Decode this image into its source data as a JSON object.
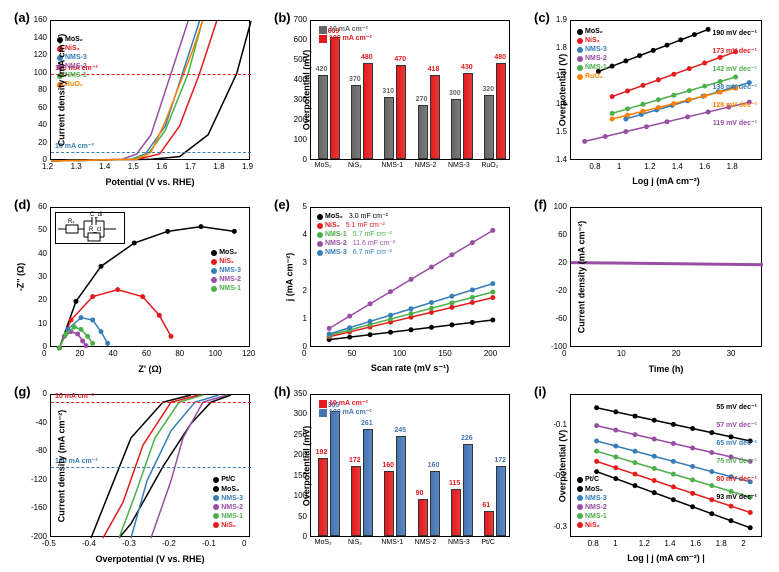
{
  "colors": {
    "MoS2": "#000000",
    "NiS2": "#e41a1c",
    "NMS1": "#4daf4a",
    "NMS2": "#984ea3",
    "NMS3": "#377eb8",
    "RuO2": "#ff7f00",
    "PtC": "#000000",
    "bar10": "#666666",
    "bar100": "#e41a1c",
    "bar10h": "#e41a1c",
    "bar100h": "#4575b4"
  },
  "panels": {
    "a": {
      "label": "(a)",
      "xlabel": "Potential (V vs. RHE)",
      "ylabel": "Current density (mA cm⁻²)",
      "xlim": [
        1.2,
        1.9
      ],
      "ylim": [
        0,
        160
      ],
      "xticks": [
        1.2,
        1.3,
        1.4,
        1.5,
        1.6,
        1.7,
        1.8,
        1.9
      ],
      "yticks": [
        0,
        20,
        40,
        60,
        80,
        100,
        120,
        140,
        160
      ],
      "ref10": "10 mA cm⁻²",
      "ref100": "100 mA cm⁻²",
      "legend": [
        "MoS₂",
        "NiS₂",
        "NMS-3",
        "NMS-2",
        "NMS-1",
        "RuO₂"
      ],
      "series": {
        "MoS2": [
          [
            1.2,
            0
          ],
          [
            1.55,
            2
          ],
          [
            1.65,
            5
          ],
          [
            1.75,
            30
          ],
          [
            1.85,
            100
          ],
          [
            1.9,
            160
          ]
        ],
        "NiS2": [
          [
            1.2,
            0
          ],
          [
            1.5,
            2
          ],
          [
            1.58,
            8
          ],
          [
            1.65,
            40
          ],
          [
            1.72,
            100
          ],
          [
            1.78,
            160
          ]
        ],
        "NMS3": [
          [
            1.2,
            0
          ],
          [
            1.48,
            2
          ],
          [
            1.53,
            8
          ],
          [
            1.6,
            40
          ],
          [
            1.66,
            100
          ],
          [
            1.72,
            160
          ]
        ],
        "NMS2": [
          [
            1.2,
            0
          ],
          [
            1.45,
            2
          ],
          [
            1.5,
            8
          ],
          [
            1.55,
            30
          ],
          [
            1.62,
            100
          ],
          [
            1.68,
            160
          ]
        ],
        "NMS1": [
          [
            1.2,
            0
          ],
          [
            1.48,
            2
          ],
          [
            1.54,
            8
          ],
          [
            1.6,
            35
          ],
          [
            1.68,
            100
          ],
          [
            1.73,
            160
          ]
        ],
        "RuO2": [
          [
            1.2,
            0
          ],
          [
            1.5,
            2
          ],
          [
            1.55,
            10
          ],
          [
            1.6,
            45
          ],
          [
            1.7,
            130
          ],
          [
            1.73,
            160
          ]
        ]
      }
    },
    "b": {
      "label": "(b)",
      "xlabel": "",
      "ylabel": "Overpotential (mV)",
      "ylim": [
        0,
        700
      ],
      "yticks": [
        0,
        100,
        200,
        300,
        400,
        500,
        600,
        700
      ],
      "legend": [
        "10 mA cm⁻²",
        "100 mA cm⁻²"
      ],
      "cats": [
        "MoS₂",
        "NiS₂",
        "NMS-1",
        "NMS-2",
        "NMS-3",
        "RuO₂"
      ],
      "v10": [
        420,
        370,
        310,
        270,
        300,
        320
      ],
      "v100": [
        609,
        480,
        470,
        418,
        430,
        480
      ],
      "lbl10": [
        "420",
        "370",
        "310",
        "270",
        "300",
        "320"
      ],
      "lbl100": [
        "609",
        "480",
        "470",
        "418",
        "430",
        "480"
      ]
    },
    "c": {
      "label": "(c)",
      "xlabel": "Log j (mA cm⁻²)",
      "ylabel": "Overpotential (V)",
      "xlim": [
        0.6,
        2.0
      ],
      "ylim": [
        1.4,
        1.9
      ],
      "xticks": [
        0.8,
        1.0,
        1.2,
        1.4,
        1.6,
        1.8
      ],
      "yticks": [
        1.4,
        1.5,
        1.6,
        1.7,
        1.8,
        1.9
      ],
      "legend": [
        "MoS₂",
        "NiS₂",
        "NMS-3",
        "NMS-2",
        "NMS-1",
        "RuO₂"
      ],
      "tafel": {
        "MoS2": "190 mV dec⁻¹",
        "NiS2": "173 mV dec⁻¹",
        "NMS1": "142 mV dec⁻¹",
        "NMS3": "138 mV dec⁻¹",
        "RuO2": "128 mV dec⁻¹",
        "NMS2": "119 mV dec⁻¹"
      },
      "series": {
        "MoS2": [
          [
            0.8,
            1.72
          ],
          [
            1.6,
            1.87
          ]
        ],
        "NiS2": [
          [
            0.9,
            1.63
          ],
          [
            1.8,
            1.79
          ]
        ],
        "NMS3": [
          [
            1.0,
            1.55
          ],
          [
            1.9,
            1.68
          ]
        ],
        "NMS2": [
          [
            0.7,
            1.47
          ],
          [
            1.9,
            1.61
          ]
        ],
        "NMS1": [
          [
            0.9,
            1.57
          ],
          [
            1.8,
            1.7
          ]
        ],
        "RuO2": [
          [
            0.9,
            1.55
          ],
          [
            1.8,
            1.66
          ]
        ]
      }
    },
    "d": {
      "label": "(d)",
      "xlabel": "Z' (Ω)",
      "ylabel": "-Z'' (Ω)",
      "xlim": [
        0,
        120
      ],
      "ylim": [
        0,
        60
      ],
      "xticks": [
        0,
        20,
        40,
        60,
        80,
        100,
        120
      ],
      "yticks": [
        0,
        10,
        20,
        30,
        40,
        50,
        60
      ],
      "legend": [
        "MoS₂",
        "NiS₂",
        "NMS-3",
        "NMS-2",
        "NMS-1"
      ],
      "circuit": [
        "Rₛ",
        "C_dl",
        "R_ct"
      ],
      "series": {
        "MoS2": [
          [
            5,
            0
          ],
          [
            15,
            20
          ],
          [
            30,
            35
          ],
          [
            50,
            45
          ],
          [
            70,
            50
          ],
          [
            90,
            52
          ],
          [
            110,
            50
          ]
        ],
        "NiS2": [
          [
            5,
            0
          ],
          [
            12,
            12
          ],
          [
            25,
            22
          ],
          [
            40,
            25
          ],
          [
            55,
            22
          ],
          [
            65,
            14
          ],
          [
            72,
            5
          ]
        ],
        "NMS3": [
          [
            5,
            0
          ],
          [
            10,
            8
          ],
          [
            18,
            13
          ],
          [
            25,
            12
          ],
          [
            30,
            7
          ],
          [
            34,
            2
          ]
        ],
        "NMS2": [
          [
            5,
            0
          ],
          [
            8,
            5
          ],
          [
            12,
            7
          ],
          [
            16,
            6
          ],
          [
            19,
            3
          ],
          [
            21,
            1
          ]
        ],
        "NMS1": [
          [
            5,
            0
          ],
          [
            9,
            6
          ],
          [
            14,
            9
          ],
          [
            18,
            8
          ],
          [
            22,
            5
          ],
          [
            25,
            2
          ]
        ]
      }
    },
    "e": {
      "label": "(e)",
      "xlabel": "Scan rate (mV s⁻¹)",
      "ylabel": "j (mA cm⁻²)",
      "xlim": [
        0,
        220
      ],
      "ylim": [
        0,
        5
      ],
      "xticks": [
        0,
        50,
        100,
        150,
        200
      ],
      "yticks": [
        0,
        1,
        2,
        3,
        4,
        5
      ],
      "legend": [
        "MoS₂",
        "NiS₂",
        "NMS-1",
        "NMS-2",
        "NMS-3"
      ],
      "cdl": {
        "MoS2": "3.0 mF cm⁻²",
        "NiS2": "5.1 mF cm⁻²",
        "NMS1": "5.7 mF cm⁻²",
        "NMS2": "11.6 mF cm⁻²",
        "NMS3": "6.7 mF cm⁻²"
      },
      "series": {
        "MoS2": [
          [
            20,
            0.3
          ],
          [
            200,
            1.0
          ]
        ],
        "NiS2": [
          [
            20,
            0.4
          ],
          [
            200,
            1.8
          ]
        ],
        "NMS1": [
          [
            20,
            0.45
          ],
          [
            200,
            2.0
          ]
        ],
        "NMS2": [
          [
            20,
            0.7
          ],
          [
            200,
            4.2
          ]
        ],
        "NMS3": [
          [
            20,
            0.5
          ],
          [
            200,
            2.3
          ]
        ]
      }
    },
    "f": {
      "label": "(f)",
      "xlabel": "Time (h)",
      "ylabel": "Current density (mA cm⁻²)",
      "xlim": [
        0,
        35
      ],
      "ylim": [
        -100,
        100
      ],
      "xticks": [
        0,
        10,
        20,
        30
      ],
      "yticks": [
        -100,
        -60,
        -20,
        20,
        60,
        100
      ],
      "series": {
        "NMS2": [
          [
            0,
            22
          ],
          [
            35,
            19
          ]
        ]
      }
    },
    "g": {
      "label": "(g)",
      "xlabel": "Overpotential (V vs. RHE)",
      "ylabel": "Current density (mA cm⁻²)",
      "xlim": [
        -0.5,
        0.0
      ],
      "ylim": [
        -200,
        0
      ],
      "xticks": [
        -0.5,
        -0.4,
        -0.3,
        -0.2,
        -0.1,
        0.0
      ],
      "yticks": [
        -200,
        -160,
        -120,
        -80,
        -40,
        0
      ],
      "ref10": "10 mA cm⁻²",
      "ref100": "100 mA cm⁻²",
      "legend": [
        "Pt/C",
        "MoS₂",
        "NMS-3",
        "NMS-2",
        "NMS-1",
        "NiS₂"
      ],
      "series": {
        "PtC": [
          [
            -0.05,
            0
          ],
          [
            -0.1,
            -10
          ],
          [
            -0.15,
            -40
          ],
          [
            -0.22,
            -100
          ],
          [
            -0.3,
            -180
          ],
          [
            -0.33,
            -200
          ]
        ],
        "MoS2": [
          [
            -0.15,
            0
          ],
          [
            -0.22,
            -10
          ],
          [
            -0.3,
            -60
          ],
          [
            -0.35,
            -130
          ],
          [
            -0.4,
            -200
          ]
        ],
        "NMS3": [
          [
            -0.08,
            0
          ],
          [
            -0.14,
            -10
          ],
          [
            -0.2,
            -50
          ],
          [
            -0.26,
            -120
          ],
          [
            -0.3,
            -200
          ]
        ],
        "NMS2": [
          [
            -0.06,
            0
          ],
          [
            -0.12,
            -10
          ],
          [
            -0.17,
            -60
          ],
          [
            -0.2,
            -120
          ],
          [
            -0.25,
            -200
          ]
        ],
        "NMS1": [
          [
            -0.12,
            0
          ],
          [
            -0.18,
            -10
          ],
          [
            -0.24,
            -60
          ],
          [
            -0.29,
            -140
          ],
          [
            -0.33,
            -200
          ]
        ],
        "NiS2": [
          [
            -0.13,
            0
          ],
          [
            -0.2,
            -10
          ],
          [
            -0.27,
            -70
          ],
          [
            -0.32,
            -150
          ],
          [
            -0.37,
            -200
          ]
        ]
      }
    },
    "h": {
      "label": "(h)",
      "ylabel": "Overpotential (mV)",
      "ylim": [
        0,
        350
      ],
      "yticks": [
        0,
        50,
        100,
        150,
        200,
        250,
        300,
        350
      ],
      "legend": [
        "10 mA cm⁻²",
        "100 mA cm⁻²"
      ],
      "cats": [
        "MoS₂",
        "NiS₂",
        "NMS-1",
        "NMS-2",
        "NMS-3",
        "Pt/C"
      ],
      "v10": [
        192,
        172,
        160,
        90,
        115,
        61
      ],
      "v100": [
        305,
        261,
        245,
        160,
        226,
        172
      ],
      "lbl10": [
        "192",
        "172",
        "160",
        "90",
        "115",
        "61"
      ],
      "lbl100": [
        "305",
        "261",
        "245",
        "160",
        "226",
        "172"
      ]
    },
    "i": {
      "label": "(i)",
      "xlabel": "Log | j (mA cm⁻²) |",
      "ylabel": "Overpotential (V)",
      "xlim": [
        0.6,
        2.1
      ],
      "ylim": [
        -0.32,
        -0.04
      ],
      "xticks": [
        0.8,
        1.0,
        1.2,
        1.4,
        1.6,
        1.8,
        2.0
      ],
      "yticks": [
        -0.3,
        -0.2,
        -0.1
      ],
      "legend": [
        "Pt/C",
        "MoS₂",
        "NMS-3",
        "NMS-2",
        "NMS-1",
        "NiS₂"
      ],
      "tafel": {
        "PtC": "55 mV dec⁻¹",
        "NMS2": "57 mV dec⁻¹",
        "NMS3": "65 mV dec⁻¹",
        "NMS1": "75 mV dec⁻¹",
        "NiS2": "80 mV dec⁻¹",
        "MoS2": "93 mV dec⁻¹"
      },
      "series": {
        "PtC": [
          [
            0.8,
            -0.065
          ],
          [
            2.0,
            -0.13
          ]
        ],
        "MoS2": [
          [
            0.8,
            -0.19
          ],
          [
            2.0,
            -0.3
          ]
        ],
        "NMS3": [
          [
            0.8,
            -0.13
          ],
          [
            2.0,
            -0.21
          ]
        ],
        "NMS2": [
          [
            0.8,
            -0.1
          ],
          [
            2.0,
            -0.17
          ]
        ],
        "NMS1": [
          [
            0.8,
            -0.15
          ],
          [
            2.0,
            -0.24
          ]
        ],
        "NiS2": [
          [
            0.8,
            -0.17
          ],
          [
            2.0,
            -0.27
          ]
        ]
      }
    }
  }
}
